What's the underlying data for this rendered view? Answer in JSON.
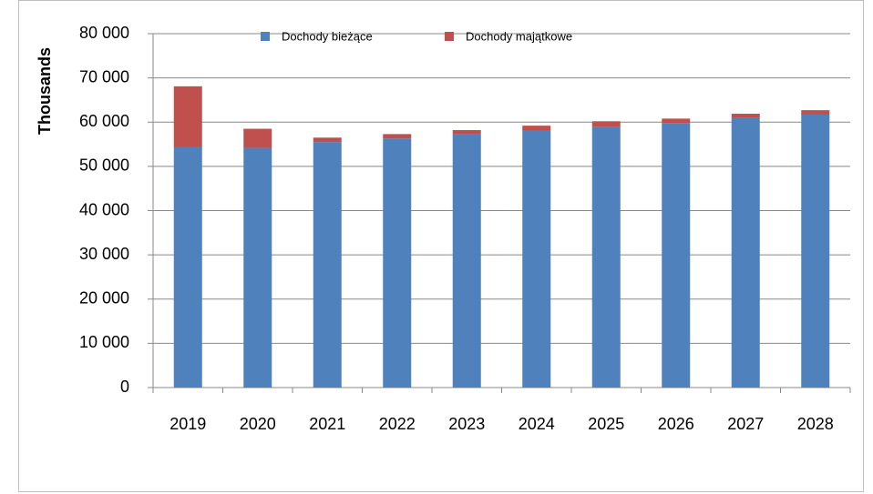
{
  "chart_data": {
    "type": "stacked_bar",
    "y_label": "Thousands",
    "categories": [
      "2019",
      "2020",
      "2021",
      "2022",
      "2023",
      "2024",
      "2025",
      "2026",
      "2027",
      "2028"
    ],
    "series": [
      {
        "name": "Dochody bieżące",
        "color": "#4f81bd",
        "values": [
          54300,
          54200,
          55500,
          56300,
          57200,
          58200,
          59000,
          59800,
          60900,
          61700
        ]
      },
      {
        "name": "Dochody majątkowe",
        "color": "#c0504d",
        "values": [
          13800,
          4300,
          1000,
          1000,
          1000,
          1000,
          1200,
          1000,
          1000,
          1000
        ]
      }
    ],
    "ylim": [
      0,
      80000
    ],
    "yticks": [
      0,
      {
        "value": 10000,
        "label": "10 000"
      },
      {
        "value": 20000,
        "label": "20 000"
      },
      {
        "value": 30000,
        "label": "30 000"
      },
      {
        "value": 40000,
        "label": "40 000"
      },
      {
        "value": 50000,
        "label": "50 000"
      },
      {
        "value": 60000,
        "label": "60 000"
      },
      {
        "value": 70000,
        "label": "70 000"
      },
      {
        "value": 80000,
        "label": "80 000"
      }
    ],
    "grid": true,
    "legend": "top"
  }
}
